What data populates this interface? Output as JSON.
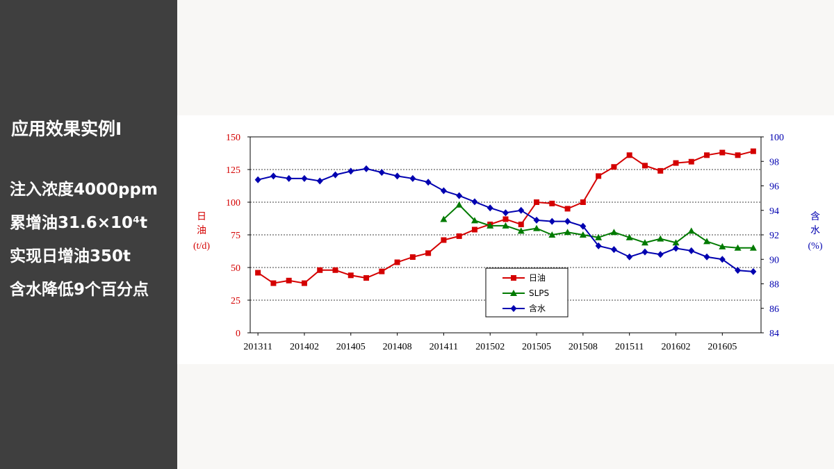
{
  "sidebar": {
    "title": "应用效果实例Ⅰ",
    "bullets": [
      "注入浓度4000ppm",
      "累增油31.6×10⁴t",
      "实现日增油350t",
      "含水降低9个百分点"
    ]
  },
  "colors": {
    "sidebar_bg": "#3f3f3f",
    "oil": "#d40000",
    "slps": "#007a00",
    "water": "#0000b0"
  },
  "chart_data": {
    "type": "line",
    "x_tick_labels": [
      "201311",
      "201402",
      "201405",
      "201408",
      "201411",
      "201502",
      "201505",
      "201508",
      "201511",
      "201602",
      "201605"
    ],
    "y_left": {
      "label_chars": [
        "日",
        "油"
      ],
      "unit": "(t/d)",
      "ylim": [
        0,
        150
      ],
      "ticks": [
        0,
        25,
        50,
        75,
        100,
        125,
        150
      ]
    },
    "y_right": {
      "label_chars": [
        "含",
        "水"
      ],
      "unit": "(%)",
      "ylim": [
        84,
        100
      ],
      "ticks": [
        84,
        86,
        88,
        90,
        92,
        94,
        96,
        98,
        100
      ]
    },
    "gridlines_left": [
      25,
      50,
      75,
      100,
      125
    ],
    "legend_placement": "bottom-center",
    "series": [
      {
        "name": "日油",
        "axis": "left",
        "marker": "square",
        "color": "#d40000",
        "x": [
          0,
          1,
          2,
          3,
          4,
          5,
          6,
          7,
          8,
          9,
          10,
          11,
          12,
          13,
          14,
          15,
          16,
          17,
          18,
          19,
          20,
          21,
          22,
          23,
          24,
          25,
          26,
          27,
          28,
          29,
          30,
          31,
          32
        ],
        "values": [
          46,
          38,
          40,
          38,
          48,
          48,
          44,
          42,
          47,
          54,
          58,
          61,
          71,
          74,
          79,
          83,
          87,
          83,
          100,
          99,
          95,
          100,
          120,
          127,
          136,
          128,
          124,
          130,
          131,
          136,
          138,
          136,
          139
        ]
      },
      {
        "name": "SLPS",
        "axis": "left",
        "marker": "triangle",
        "color": "#007a00",
        "x": [
          12,
          13,
          14,
          15,
          16,
          17,
          18,
          19,
          20,
          21,
          22,
          23,
          24,
          25,
          26,
          27,
          28,
          29,
          30,
          31,
          32
        ],
        "values": [
          87,
          98,
          86,
          82,
          82,
          78,
          80,
          75,
          77,
          75,
          73,
          77,
          73,
          69,
          72,
          69,
          78,
          70,
          66,
          65,
          65
        ]
      },
      {
        "name": "含水",
        "axis": "right",
        "marker": "diamond",
        "color": "#0000b0",
        "x": [
          0,
          1,
          2,
          3,
          4,
          5,
          6,
          7,
          8,
          9,
          10,
          11,
          12,
          13,
          14,
          15,
          16,
          17,
          18,
          19,
          20,
          21,
          22,
          23,
          24,
          25,
          26,
          27,
          28,
          29,
          30,
          31,
          32
        ],
        "values": [
          96.5,
          96.8,
          96.6,
          96.6,
          96.4,
          96.9,
          97.2,
          97.4,
          97.1,
          96.8,
          96.6,
          96.3,
          95.6,
          95.2,
          94.7,
          94.2,
          93.8,
          94.0,
          93.2,
          93.1,
          93.1,
          92.7,
          91.1,
          90.8,
          90.2,
          90.6,
          90.4,
          90.9,
          90.7,
          90.2,
          90.0,
          89.1,
          89.0
        ]
      }
    ]
  }
}
